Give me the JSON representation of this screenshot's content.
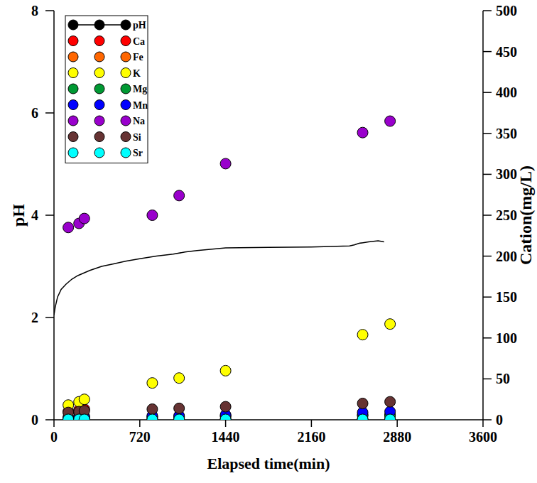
{
  "chart_data": {
    "type": "scatter",
    "x_label": "Elapsed time(min)",
    "y_label": "pH",
    "y2_label": "Cation(mg/L)",
    "xlim": [
      0,
      3600
    ],
    "xticks": [
      0,
      720,
      1440,
      2160,
      2880,
      3600
    ],
    "ylim": [
      0,
      8
    ],
    "yticks": [
      0,
      2,
      4,
      6,
      8
    ],
    "y2lim": [
      0,
      500
    ],
    "y2ticks": [
      0,
      50,
      100,
      150,
      200,
      250,
      300,
      350,
      400,
      450,
      500
    ],
    "legend": "top-left",
    "series": [
      {
        "name": "pH",
        "type": "line",
        "color": "#000000",
        "line_style": "solid",
        "x": [
          0,
          10,
          30,
          60,
          100,
          150,
          200,
          300,
          400,
          500,
          600,
          720,
          860,
          1000,
          1100,
          1200,
          1440,
          1800,
          2160,
          2480,
          2520,
          2560,
          2640,
          2720,
          2770
        ],
        "values": [
          2.05,
          2.2,
          2.4,
          2.55,
          2.65,
          2.75,
          2.82,
          2.92,
          3.0,
          3.05,
          3.1,
          3.15,
          3.2,
          3.24,
          3.28,
          3.31,
          3.36,
          3.37,
          3.38,
          3.4,
          3.42,
          3.45,
          3.48,
          3.5,
          3.48
        ]
      },
      {
        "name": "Ca",
        "axis": "y2",
        "color": "#ff0000",
        "marker": "circle",
        "x": [
          120,
          210,
          255,
          825,
          1050,
          1440,
          2590,
          2820
        ],
        "values": [
          10,
          12,
          13,
          4,
          4,
          5,
          6,
          6
        ]
      },
      {
        "name": "Fe",
        "axis": "y2",
        "color": "#ff6600",
        "marker": "circle",
        "x": [
          120,
          210,
          255,
          825,
          1050,
          1440,
          2590,
          2820
        ],
        "values": [
          1,
          1,
          1,
          1,
          1,
          1,
          1,
          1
        ]
      },
      {
        "name": "K",
        "axis": "y2",
        "color": "#ffff00",
        "marker": "circle",
        "x": [
          120,
          210,
          255,
          825,
          1050,
          1440,
          2590,
          2820
        ],
        "values": [
          18,
          22,
          25,
          45,
          51,
          60,
          104,
          117
        ]
      },
      {
        "name": "Mg",
        "axis": "y2",
        "color": "#009933",
        "marker": "circle",
        "x": [
          120,
          210,
          255,
          825,
          1050,
          1440,
          2590,
          2820
        ],
        "values": [
          3,
          4,
          4,
          3,
          3,
          4,
          5,
          5
        ]
      },
      {
        "name": "Mn",
        "axis": "y2",
        "color": "#0000ff",
        "marker": "circle",
        "x": [
          120,
          210,
          255,
          825,
          1050,
          1440,
          2590,
          2820
        ],
        "values": [
          2,
          3,
          3,
          5,
          5,
          6,
          9,
          10
        ]
      },
      {
        "name": "Na",
        "axis": "y2",
        "color": "#9900cc",
        "marker": "circle",
        "x": [
          120,
          210,
          255,
          825,
          1050,
          1440,
          2590,
          2820
        ],
        "values": [
          235,
          240,
          246,
          250,
          274,
          313,
          351,
          365
        ]
      },
      {
        "name": "Si",
        "axis": "y2",
        "color": "#663333",
        "marker": "circle",
        "x": [
          120,
          210,
          255,
          825,
          1050,
          1440,
          2590,
          2820
        ],
        "values": [
          9,
          10,
          11,
          13,
          14,
          16,
          20,
          22
        ]
      },
      {
        "name": "Sr",
        "axis": "y2",
        "color": "#00ffff",
        "marker": "circle",
        "x": [
          120,
          210,
          255,
          825,
          1050,
          1440,
          2590,
          2820
        ],
        "values": [
          0.5,
          0.5,
          0.5,
          0.5,
          0.5,
          0.5,
          0.5,
          0.5
        ]
      }
    ]
  }
}
